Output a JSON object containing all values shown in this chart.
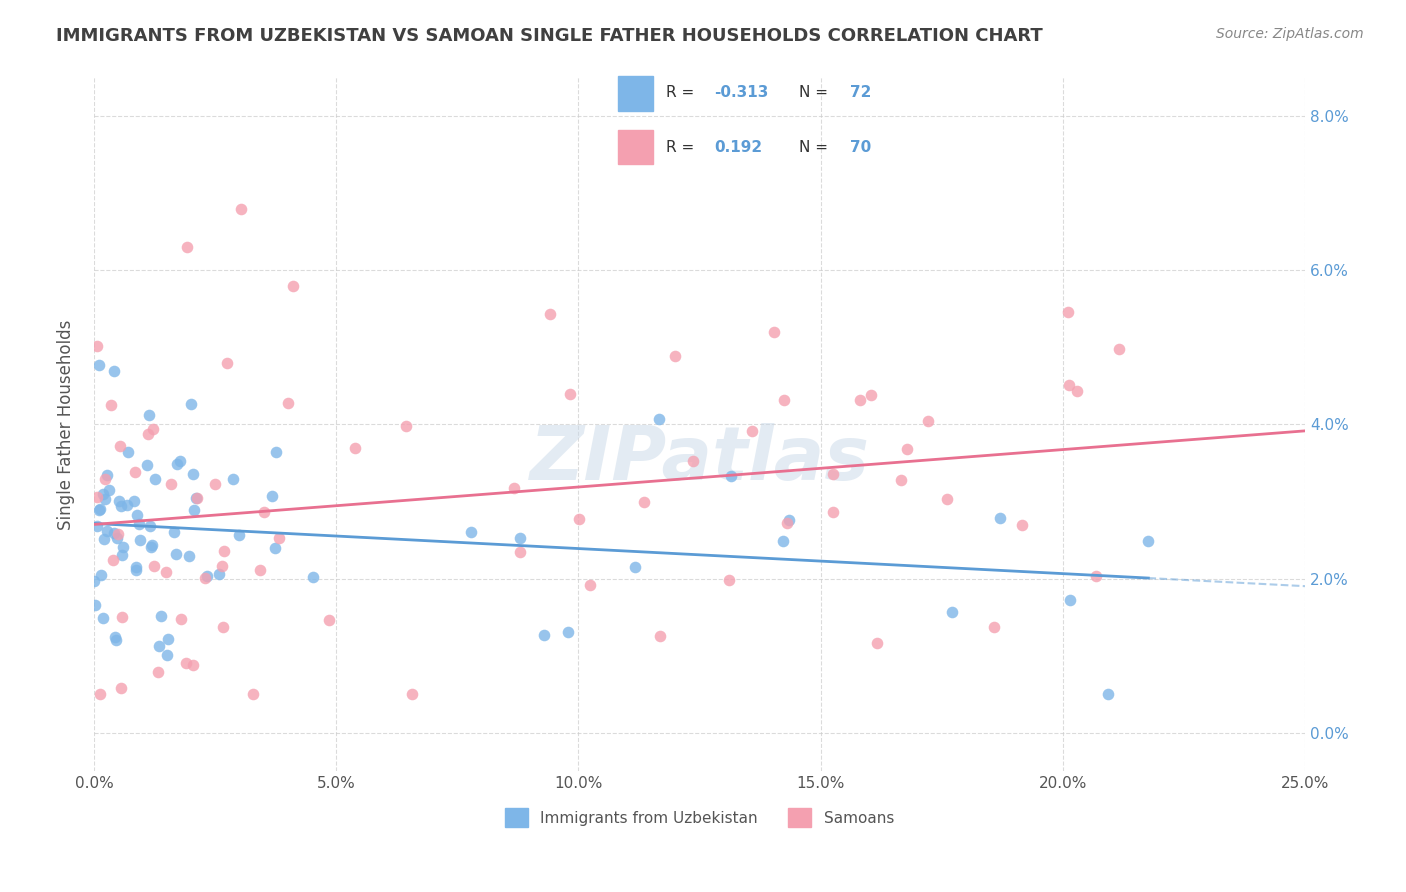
{
  "title": "IMMIGRANTS FROM UZBEKISTAN VS SAMOAN SINGLE FATHER HOUSEHOLDS CORRELATION CHART",
  "source": "Source: ZipAtlas.com",
  "ylabel": "Single Father Households",
  "xlim": [
    0.0,
    0.25
  ],
  "ylim": [
    -0.005,
    0.085
  ],
  "yticks": [
    0.0,
    0.02,
    0.04,
    0.06,
    0.08
  ],
  "xticks": [
    0.0,
    0.05,
    0.1,
    0.15,
    0.2,
    0.25
  ],
  "legend1_label": "Immigrants from Uzbekistan",
  "legend2_label": "Samoans",
  "R1": -0.313,
  "N1": 72,
  "R2": 0.192,
  "N2": 70,
  "color1": "#7EB6E8",
  "color2": "#F4A0B0",
  "line1_color": "#5B9BD5",
  "line2_color": "#E87090",
  "watermark": "ZIPatlas",
  "background_color": "#FFFFFF",
  "grid_color": "#CCCCCC",
  "title_color": "#404040",
  "accent_color": "#5B9BD5"
}
